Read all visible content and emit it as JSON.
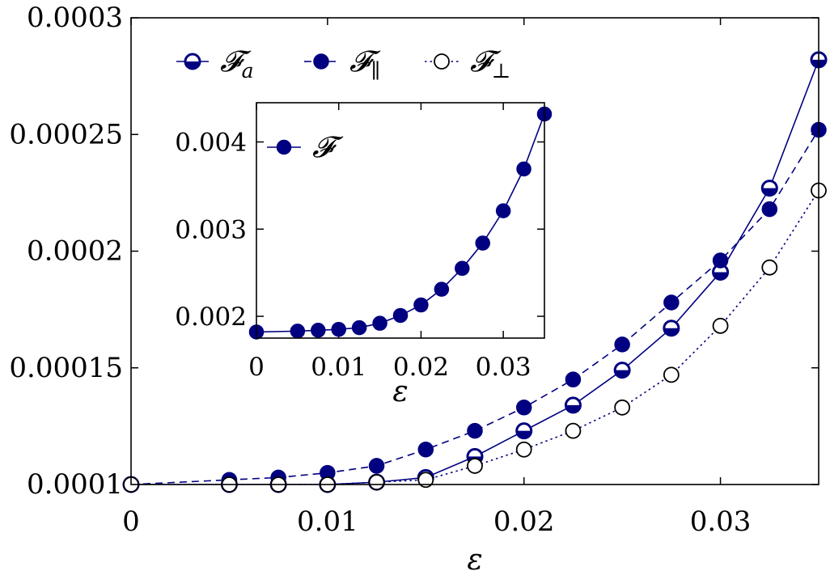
{
  "chart_data": [
    {
      "type": "line",
      "title": "",
      "xlabel": "ε",
      "ylabel": "",
      "xlim": [
        0,
        0.035
      ],
      "ylim": [
        0.0001,
        0.0003
      ],
      "x_ticks": [
        0,
        0.01,
        0.02,
        0.03
      ],
      "x_tick_labels": [
        "0",
        "0.01",
        "0.02",
        "0.03"
      ],
      "y_ticks": [
        0.0001,
        0.00015,
        0.0002,
        0.00025,
        0.0003
      ],
      "y_tick_labels": [
        "0.0001",
        "0.00015",
        "0.0002",
        "0.00025",
        "0.0003"
      ],
      "grid": false,
      "legend_position": "top",
      "series": [
        {
          "name": "𝓕a",
          "label_main": "𝓕",
          "label_sub": "a",
          "color": "#000080",
          "line_style": "solid",
          "marker": "half-filled-circle",
          "x": [
            0,
            0.005,
            0.0075,
            0.01,
            0.0125,
            0.015,
            0.0175,
            0.02,
            0.0225,
            0.025,
            0.0275,
            0.03,
            0.0325,
            0.035
          ],
          "values": [
            0.0001,
            0.0001,
            0.0001,
            0.0001,
            0.000101,
            0.000103,
            0.000112,
            0.000123,
            0.000134,
            0.000149,
            0.000167,
            0.000191,
            0.000227,
            0.000282
          ]
        },
        {
          "name": "𝓕∥",
          "label_main": "𝓕",
          "label_sub": "∥",
          "color": "#000080",
          "line_style": "dashed",
          "marker": "filled-circle",
          "x": [
            0,
            0.005,
            0.0075,
            0.01,
            0.0125,
            0.015,
            0.0175,
            0.02,
            0.0225,
            0.025,
            0.0275,
            0.03,
            0.0325,
            0.035
          ],
          "values": [
            0.0001,
            0.000102,
            0.000103,
            0.000105,
            0.000108,
            0.000115,
            0.000123,
            0.000133,
            0.000145,
            0.00016,
            0.000178,
            0.000196,
            0.000218,
            0.000252
          ]
        },
        {
          "name": "𝓕⊥",
          "label_main": "𝓕",
          "label_sub": "⊥",
          "color": "#000080",
          "line_style": "dotted",
          "marker": "open-circle",
          "x": [
            0,
            0.005,
            0.0075,
            0.01,
            0.0125,
            0.015,
            0.0175,
            0.02,
            0.0225,
            0.025,
            0.0275,
            0.03,
            0.0325,
            0.035
          ],
          "values": [
            0.0001,
            0.0001,
            0.0001,
            0.0001,
            0.000101,
            0.000102,
            0.000108,
            0.000115,
            0.000123,
            0.000133,
            0.000147,
            0.000168,
            0.000193,
            0.000226
          ]
        }
      ]
    },
    {
      "type": "line",
      "title": "",
      "xlabel": "ε",
      "ylabel": "",
      "xlim": [
        0,
        0.035
      ],
      "ylim": [
        0.00175,
        0.00445
      ],
      "x_ticks": [
        0,
        0.01,
        0.02,
        0.03
      ],
      "x_tick_labels": [
        "0",
        "0.01",
        "0.02",
        "0.03"
      ],
      "y_ticks": [
        0.002,
        0.003,
        0.004
      ],
      "y_tick_labels": [
        "0.002",
        "0.003",
        "0.004"
      ],
      "grid": false,
      "legend_position": "top-left",
      "series": [
        {
          "name": "𝓕",
          "label_main": "𝓕",
          "label_sub": "",
          "color": "#000080",
          "line_style": "solid",
          "marker": "filled-circle",
          "x": [
            0,
            0.005,
            0.0075,
            0.01,
            0.0125,
            0.015,
            0.0175,
            0.02,
            0.0225,
            0.025,
            0.0275,
            0.03,
            0.0325,
            0.035
          ],
          "values": [
            0.00182,
            0.00183,
            0.00184,
            0.00185,
            0.00187,
            0.00192,
            0.00201,
            0.00213,
            0.00231,
            0.00255,
            0.00284,
            0.00321,
            0.00369,
            0.00432
          ]
        }
      ]
    }
  ]
}
